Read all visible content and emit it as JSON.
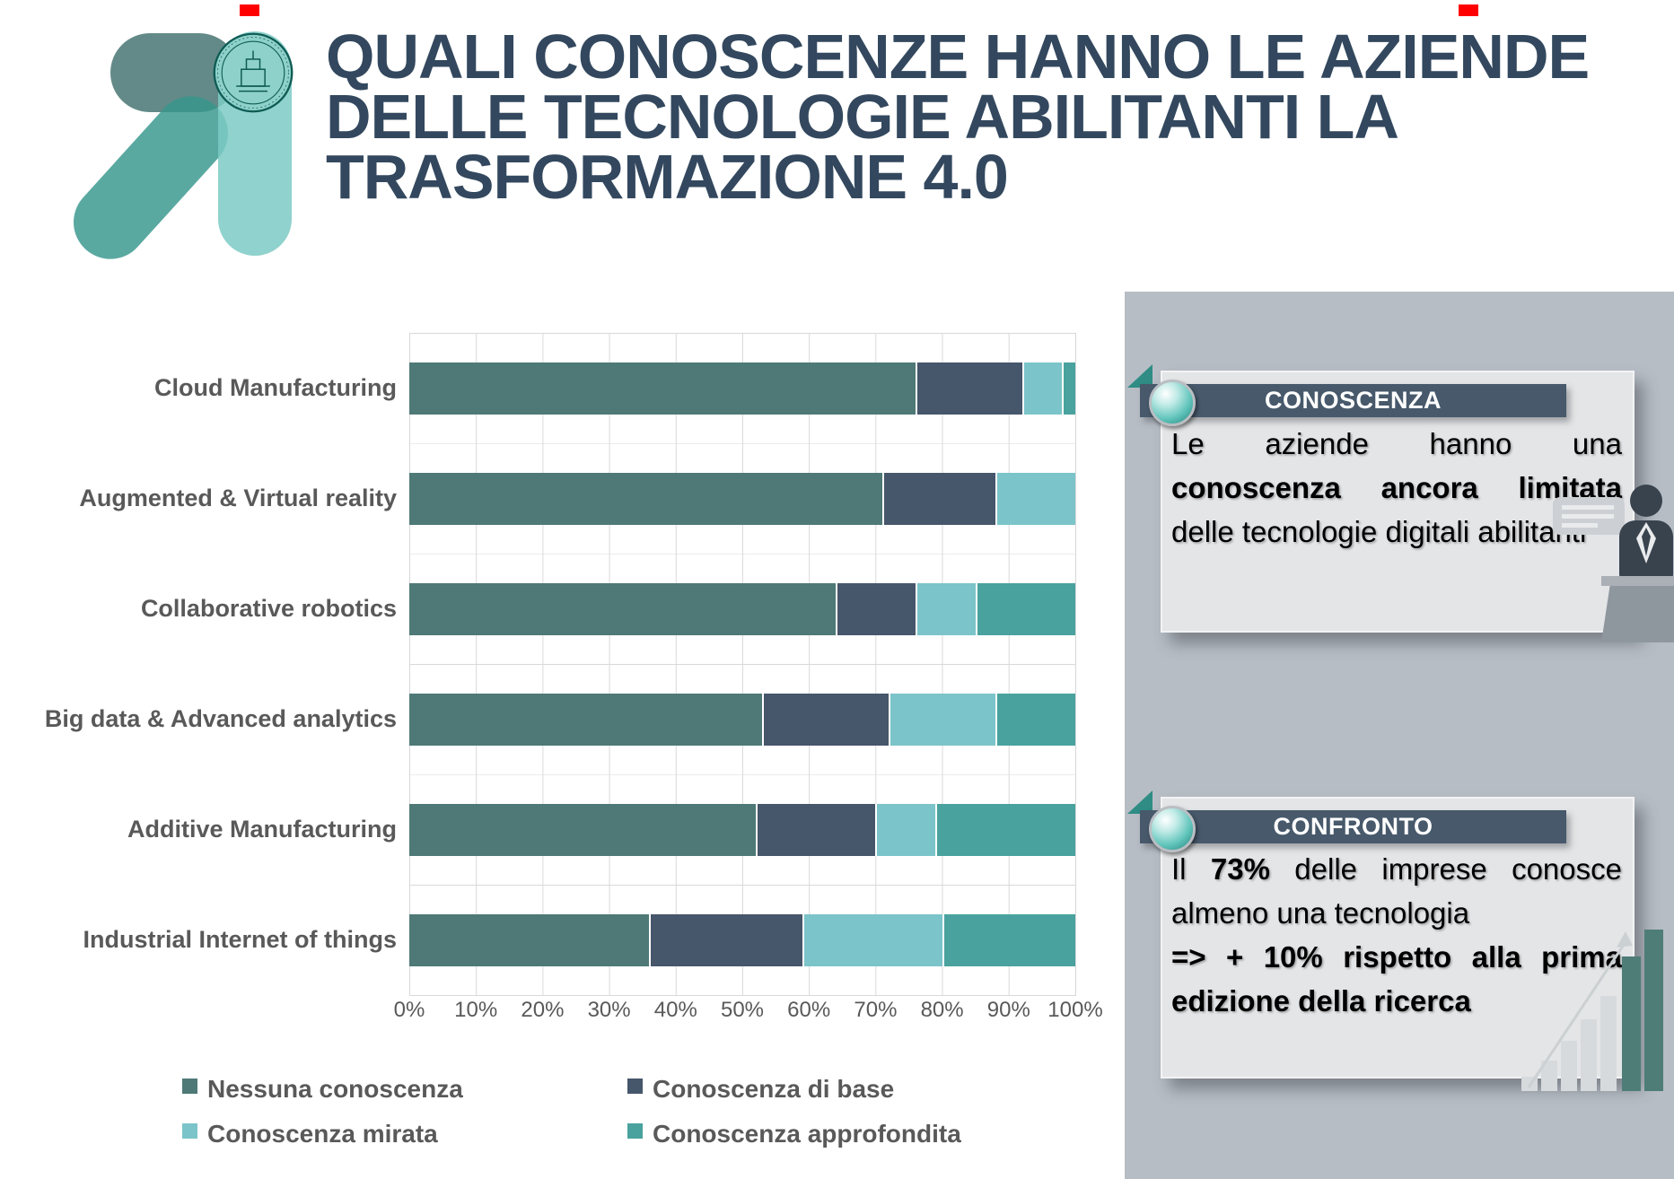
{
  "slide": {
    "title_lines": [
      "QUALI CONOSCENZE HANNO LE AZIENDE",
      "DELLE TECNOLOGIE ABILITANTI LA",
      "TRASFORMAZIONE 4.0"
    ]
  },
  "colors": {
    "title": "#33485E",
    "header_bar": "#47596B",
    "side_panel": "#B7BDC5",
    "callout_box": "#E4E5E7",
    "red_marker": "#FF0000",
    "gridline": "#D9D9D9",
    "label_gray": "#595959"
  },
  "chart_data": {
    "type": "bar",
    "orientation": "horizontal",
    "stacked": true,
    "grid": true,
    "legend_position": "bottom",
    "xlim": [
      0,
      100
    ],
    "x_ticks": [
      "0%",
      "10%",
      "20%",
      "30%",
      "40%",
      "50%",
      "60%",
      "70%",
      "80%",
      "90%",
      "100%"
    ],
    "categories": [
      "Cloud Manufacturing",
      "Augmented & Virtual reality",
      "Collaborative robotics",
      "Big data & Advanced analytics",
      "Additive Manufacturing",
      "Industrial Internet of things"
    ],
    "series": [
      {
        "name": "Nessuna conoscenza",
        "color": "#4E7977",
        "values": [
          76,
          71,
          64,
          53,
          52,
          36
        ]
      },
      {
        "name": "Conoscenza di base",
        "color": "#46566B",
        "values": [
          16,
          17,
          12,
          19,
          18,
          23
        ]
      },
      {
        "name": "Conoscenza mirata",
        "color": "#7BC4C9",
        "values": [
          6,
          12,
          9,
          16,
          9,
          21
        ]
      },
      {
        "name": "Conoscenza approfondita",
        "color": "#49A29E",
        "values": [
          2,
          0,
          15,
          12,
          21,
          20
        ]
      }
    ]
  },
  "callouts": {
    "conoscenza": {
      "header": "CONOSCENZA",
      "text_before": "Le aziende hanno una ",
      "text_bold": "conoscenza ancora limitata",
      "text_after": " delle tecnologie digitali abilitanti"
    },
    "confronto": {
      "header": "CONFRONTO",
      "p1_before": "Il ",
      "p1_bold": "73%",
      "p1_after": " delle imprese conosce almeno una tecnologia",
      "p2_bold": "=> + 10% rispetto alla prima edizione della ricerca"
    }
  }
}
